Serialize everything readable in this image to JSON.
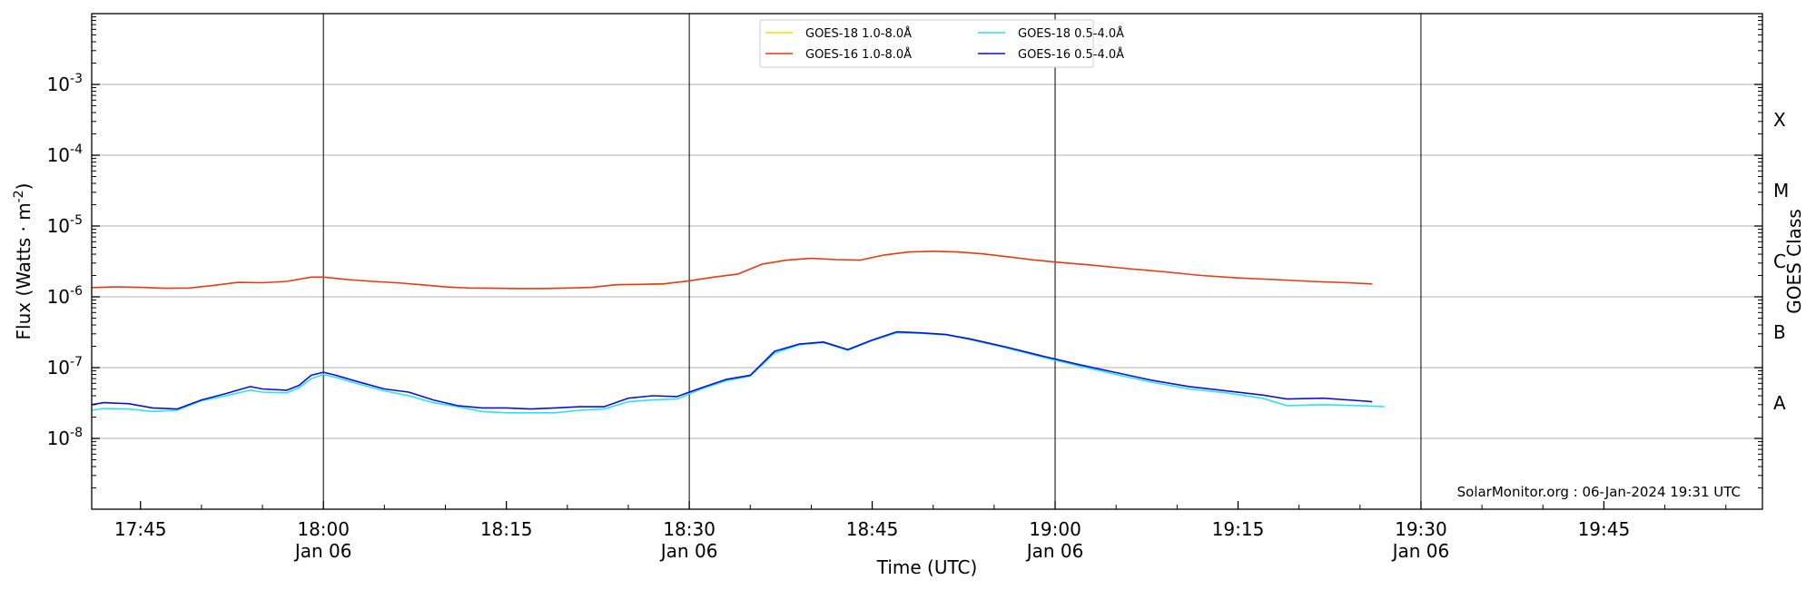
{
  "chart_data": {
    "type": "line",
    "xlabel": "Time (UTC)",
    "ylabel": "Flux (Watts · m^-2)",
    "right_ylabel": "GOES Class",
    "y_scale": "log",
    "ylim": [
      1e-09,
      0.01
    ],
    "y_ticks": [
      {
        "value": 1e-08,
        "exp": "-8"
      },
      {
        "value": 1e-07,
        "exp": "-7"
      },
      {
        "value": 1e-06,
        "exp": "-6"
      },
      {
        "value": 1e-05,
        "exp": "-5"
      },
      {
        "value": 0.0001,
        "exp": "-4"
      },
      {
        "value": 0.001,
        "exp": "-3"
      }
    ],
    "xlim": [
      "17:41",
      "19:58"
    ],
    "x_ticks": [
      {
        "time": "17:45",
        "line1": "17:45",
        "line2": ""
      },
      {
        "time": "18:00",
        "line1": "18:00",
        "line2": "Jan 06"
      },
      {
        "time": "18:15",
        "line1": "18:15",
        "line2": ""
      },
      {
        "time": "18:30",
        "line1": "18:30",
        "line2": "Jan 06"
      },
      {
        "time": "18:45",
        "line1": "18:45",
        "line2": ""
      },
      {
        "time": "19:00",
        "line1": "19:00",
        "line2": "Jan 06"
      },
      {
        "time": "19:15",
        "line1": "19:15",
        "line2": ""
      },
      {
        "time": "19:30",
        "line1": "19:30",
        "line2": "Jan 06"
      },
      {
        "time": "19:45",
        "line1": "19:45",
        "line2": ""
      }
    ],
    "vertical_lines": [
      "18:00",
      "18:30",
      "19:00",
      "19:30"
    ],
    "goes_classes": [
      {
        "label": "A",
        "value": 3.16e-08
      },
      {
        "label": "B",
        "value": 3.16e-07
      },
      {
        "label": "C",
        "value": 3.16e-06
      },
      {
        "label": "M",
        "value": 3.16e-05
      },
      {
        "label": "X",
        "value": 0.000316
      }
    ],
    "grid": "horizontal at decades",
    "legend_position": "top-center",
    "credit": "SolarMonitor.org : 06-Jan-2024 19:31 UTC",
    "series": [
      {
        "name": "GOES-18 1.0-8.0Å",
        "color": "#ffd700",
        "x": [
          "18:25",
          "18:28"
        ],
        "values": [
          1.5e-06,
          1.5e-06
        ]
      },
      {
        "name": "GOES-16 1.0-8.0Å",
        "color": "#e83a10",
        "x": [
          "17:41",
          "17:43",
          "17:45",
          "17:47",
          "17:49",
          "17:51",
          "17:53",
          "17:55",
          "17:57",
          "17:59",
          "18:00",
          "18:02",
          "18:04",
          "18:06",
          "18:08",
          "18:10",
          "18:12",
          "18:14",
          "18:16",
          "18:18",
          "18:20",
          "18:22",
          "18:24",
          "18:26",
          "18:28",
          "18:30",
          "18:32",
          "18:34",
          "18:36",
          "18:38",
          "18:40",
          "18:42",
          "18:44",
          "18:46",
          "18:48",
          "18:50",
          "18:52",
          "18:54",
          "18:56",
          "18:58",
          "19:00",
          "19:03",
          "19:06",
          "19:09",
          "19:12",
          "19:15",
          "19:18",
          "19:21",
          "19:24",
          "19:26"
        ],
        "values": [
          1.35e-06,
          1.38e-06,
          1.36e-06,
          1.32e-06,
          1.33e-06,
          1.45e-06,
          1.6e-06,
          1.58e-06,
          1.65e-06,
          1.9e-06,
          1.9e-06,
          1.75e-06,
          1.65e-06,
          1.58e-06,
          1.48e-06,
          1.38e-06,
          1.33e-06,
          1.32e-06,
          1.31e-06,
          1.31e-06,
          1.33e-06,
          1.36e-06,
          1.48e-06,
          1.5e-06,
          1.53e-06,
          1.68e-06,
          1.9e-06,
          2.1e-06,
          2.9e-06,
          3.3e-06,
          3.5e-06,
          3.35e-06,
          3.3e-06,
          3.9e-06,
          4.3e-06,
          4.4e-06,
          4.3e-06,
          4.05e-06,
          3.7e-06,
          3.35e-06,
          3.1e-06,
          2.8e-06,
          2.5e-06,
          2.25e-06,
          2e-06,
          1.85e-06,
          1.75e-06,
          1.65e-06,
          1.58e-06,
          1.52e-06
        ]
      },
      {
        "name": "GOES-18 0.5-4.0Å",
        "color": "#29e3f2",
        "x": [
          "17:41",
          "17:42",
          "17:44",
          "17:46",
          "17:48",
          "17:50",
          "17:52",
          "17:54",
          "17:55",
          "17:57",
          "17:58",
          "17:59",
          "18:00",
          "18:01",
          "18:03",
          "18:05",
          "18:07",
          "18:09",
          "18:11",
          "18:13",
          "18:15",
          "18:17",
          "18:19",
          "18:21",
          "18:23",
          "18:25",
          "18:27",
          "18:29",
          "18:31",
          "18:33",
          "18:35",
          "18:37",
          "18:39",
          "18:41",
          "18:43",
          "18:45",
          "18:47",
          "18:49",
          "18:51",
          "18:53",
          "18:56",
          "18:59",
          "19:02",
          "19:05",
          "19:08",
          "19:11",
          "19:14",
          "19:17",
          "19:19",
          "19:22",
          "19:25",
          "19:27"
        ],
        "values": [
          2.5e-08,
          2.65e-08,
          2.6e-08,
          2.4e-08,
          2.5e-08,
          3.4e-08,
          4e-08,
          4.8e-08,
          4.5e-08,
          4.4e-08,
          5.2e-08,
          7e-08,
          8e-08,
          7.3e-08,
          5.8e-08,
          4.7e-08,
          4e-08,
          3.2e-08,
          2.8e-08,
          2.4e-08,
          2.3e-08,
          2.3e-08,
          2.3e-08,
          2.5e-08,
          2.6e-08,
          3.3e-08,
          3.5e-08,
          3.6e-08,
          5e-08,
          6.5e-08,
          7.6e-08,
          1.6e-07,
          2.1e-07,
          2.25e-07,
          1.75e-07,
          2.4e-07,
          3.1e-07,
          3.05e-07,
          2.9e-07,
          2.5e-07,
          1.9e-07,
          1.4e-07,
          1.05e-07,
          8e-08,
          6.2e-08,
          5e-08,
          4.4e-08,
          3.7e-08,
          2.9e-08,
          3e-08,
          2.9e-08,
          2.8e-08
        ]
      },
      {
        "name": "GOES-16 0.5-4.0Å",
        "color": "#0f0fd6",
        "x": [
          "17:41",
          "17:42",
          "17:44",
          "17:46",
          "17:48",
          "17:50",
          "17:52",
          "17:54",
          "17:55",
          "17:57",
          "17:58",
          "17:59",
          "18:00",
          "18:01",
          "18:03",
          "18:05",
          "18:07",
          "18:09",
          "18:11",
          "18:13",
          "18:15",
          "18:17",
          "18:19",
          "18:21",
          "18:23",
          "18:25",
          "18:27",
          "18:29",
          "18:31",
          "18:33",
          "18:35",
          "18:37",
          "18:39",
          "18:41",
          "18:43",
          "18:45",
          "18:47",
          "18:49",
          "18:51",
          "18:53",
          "18:56",
          "18:59",
          "19:02",
          "19:05",
          "19:08",
          "19:11",
          "19:14",
          "19:17",
          "19:19",
          "19:22",
          "19:25",
          "19:26"
        ],
        "values": [
          3e-08,
          3.2e-08,
          3.1e-08,
          2.7e-08,
          2.6e-08,
          3.5e-08,
          4.3e-08,
          5.4e-08,
          5e-08,
          4.8e-08,
          5.6e-08,
          7.8e-08,
          8.6e-08,
          7.8e-08,
          6.2e-08,
          5e-08,
          4.5e-08,
          3.5e-08,
          2.9e-08,
          2.7e-08,
          2.7e-08,
          2.6e-08,
          2.7e-08,
          2.8e-08,
          2.8e-08,
          3.7e-08,
          4e-08,
          3.9e-08,
          5.2e-08,
          6.8e-08,
          7.8e-08,
          1.7e-07,
          2.15e-07,
          2.3e-07,
          1.8e-07,
          2.45e-07,
          3.2e-07,
          3.1e-07,
          2.95e-07,
          2.55e-07,
          1.95e-07,
          1.45e-07,
          1.1e-07,
          8.5e-08,
          6.6e-08,
          5.4e-08,
          4.7e-08,
          4.1e-08,
          3.6e-08,
          3.7e-08,
          3.4e-08,
          3.3e-08
        ]
      }
    ]
  }
}
